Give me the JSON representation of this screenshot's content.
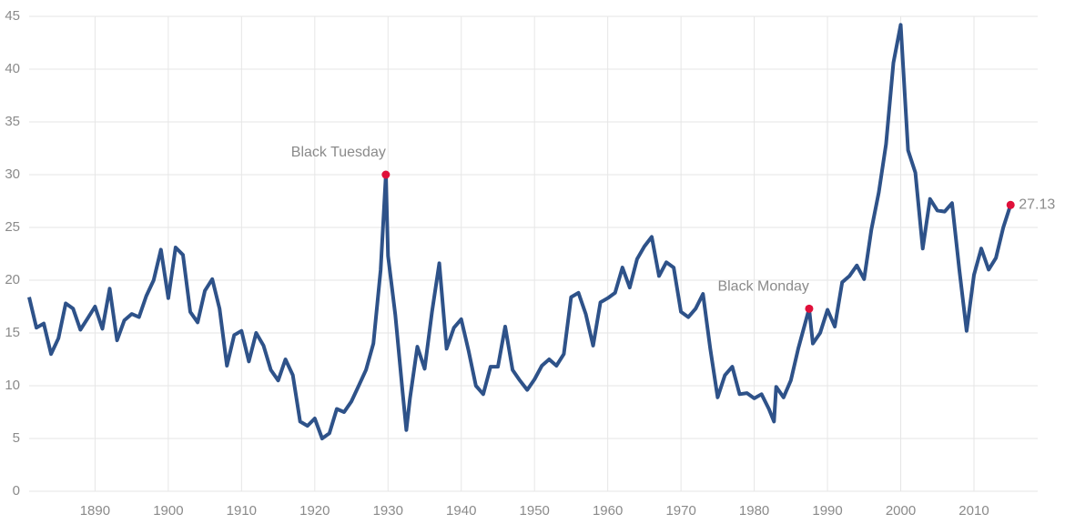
{
  "chart_data": {
    "type": "line",
    "x": [
      1881,
      1882,
      1883,
      1884,
      1885,
      1886,
      1887,
      1888,
      1889,
      1890,
      1891,
      1892,
      1893,
      1894,
      1895,
      1896,
      1897,
      1898,
      1899,
      1900,
      1901,
      1902,
      1903,
      1904,
      1905,
      1906,
      1907,
      1908,
      1909,
      1910,
      1911,
      1912,
      1913,
      1914,
      1915,
      1916,
      1917,
      1918,
      1919,
      1920,
      1921,
      1922,
      1923,
      1924,
      1925,
      1926,
      1927,
      1928,
      1929,
      1929.7,
      1930,
      1931,
      1932,
      1932.5,
      1933,
      1934,
      1935,
      1936,
      1937,
      1938,
      1939,
      1940,
      1941,
      1942,
      1943,
      1944,
      1945,
      1946,
      1947,
      1948,
      1949,
      1950,
      1951,
      1952,
      1953,
      1954,
      1955,
      1956,
      1957,
      1958,
      1959,
      1960,
      1961,
      1962,
      1963,
      1964,
      1965,
      1966,
      1967,
      1968,
      1969,
      1970,
      1971,
      1972,
      1973,
      1974,
      1975,
      1976,
      1977,
      1978,
      1979,
      1980,
      1981,
      1982,
      1982.7,
      1983,
      1984,
      1985,
      1986,
      1987.5,
      1988,
      1989,
      1990,
      1991,
      1992,
      1993,
      1994,
      1995,
      1996,
      1997,
      1998,
      1999,
      2000,
      2001,
      2002,
      2003,
      2004,
      2005,
      2006,
      2007,
      2008,
      2009,
      2010,
      2011,
      2012,
      2013,
      2014,
      2015
    ],
    "values": [
      18.4,
      15.5,
      15.9,
      13.0,
      14.5,
      17.8,
      17.3,
      15.3,
      16.4,
      17.5,
      15.4,
      19.2,
      14.3,
      16.2,
      16.8,
      16.5,
      18.5,
      20.0,
      22.9,
      18.3,
      23.1,
      22.4,
      17.0,
      16.0,
      19.0,
      20.1,
      17.3,
      11.9,
      14.8,
      15.2,
      12.3,
      15.0,
      13.8,
      11.5,
      10.5,
      12.5,
      11.0,
      6.6,
      6.2,
      6.9,
      5.0,
      5.5,
      7.8,
      7.5,
      8.5,
      10.0,
      11.5,
      14.0,
      21.0,
      30.0,
      22.3,
      16.7,
      9.3,
      5.8,
      8.8,
      13.7,
      11.6,
      17.0,
      21.6,
      13.5,
      15.5,
      16.3,
      13.3,
      10.0,
      9.2,
      11.8,
      11.8,
      15.6,
      11.5,
      10.5,
      9.6,
      10.6,
      11.9,
      12.5,
      11.9,
      13.0,
      18.4,
      18.8,
      16.8,
      13.8,
      17.9,
      18.3,
      18.8,
      21.2,
      19.3,
      22.0,
      23.2,
      24.1,
      20.4,
      21.7,
      21.2,
      17.0,
      16.5,
      17.3,
      18.7,
      13.5,
      8.9,
      11.0,
      11.8,
      9.2,
      9.3,
      8.8,
      9.2,
      7.8,
      6.6,
      9.9,
      8.9,
      10.5,
      13.5,
      17.3,
      14.0,
      15.0,
      17.2,
      15.6,
      19.8,
      20.4,
      21.4,
      20.1,
      24.8,
      28.3,
      32.9,
      40.6,
      44.2,
      32.3,
      30.2,
      23.0,
      27.7,
      26.6,
      26.5,
      27.3,
      21.0,
      15.2,
      20.5,
      23.0,
      21.0,
      22.1,
      25.0,
      27.13
    ],
    "color": "#2e5289",
    "marker_color": "#e0103a",
    "annotations": [
      {
        "x": 1929.7,
        "y": 30.0,
        "text": "Black Tuesday"
      },
      {
        "x": 1987.5,
        "y": 17.3,
        "text": "Black Monday"
      }
    ],
    "label_last": true,
    "xlim": [
      1881,
      2018.7
    ],
    "xticks": [
      1890,
      1900,
      1910,
      1920,
      1930,
      1940,
      1950,
      1960,
      1970,
      1980,
      1990,
      2000,
      2010
    ],
    "ylim": [
      0,
      45
    ],
    "yticks": [
      0,
      5,
      10,
      15,
      20,
      25,
      30,
      35,
      40,
      45
    ],
    "grid": true
  }
}
